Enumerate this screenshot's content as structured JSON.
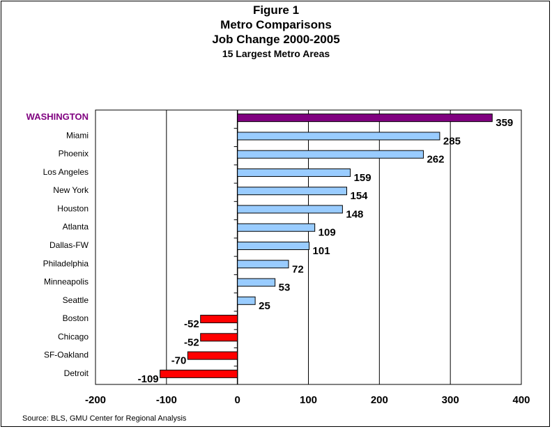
{
  "title": "Figure 1",
  "subtitle_1": "Metro Comparisons",
  "subtitle_2": "Job  Change 2000-2005",
  "subtitle_3": "15 Largest Metro Areas",
  "source": "Source: BLS, GMU Center for Regional Analysis",
  "colors": {
    "highlight": "#800080",
    "positive": "#99ccff",
    "negative": "#ff0000",
    "outline": "#000000"
  },
  "chart_data": {
    "type": "bar",
    "orientation": "horizontal",
    "categories": [
      "WASHINGTON",
      "Miami",
      "Phoenix",
      "Los Angeles",
      "New York",
      "Houston",
      "Atlanta",
      "Dallas-FW",
      "Philadelphia",
      "Minneapolis",
      "Seattle",
      "Boston",
      "Chicago",
      "SF-Oakland",
      "Detroit"
    ],
    "values": [
      359,
      285,
      262,
      159,
      154,
      148,
      109,
      101,
      72,
      53,
      25,
      -52,
      -52,
      -70,
      -109
    ],
    "data_labels": [
      "359",
      "285",
      "262",
      "159",
      "154",
      "148",
      "109",
      "101",
      "72",
      "53",
      "25",
      "-52",
      "-52",
      "-70",
      "-109"
    ],
    "highlight_category": "WASHINGTON",
    "xlim": [
      -200,
      400
    ],
    "xticks": [
      -200,
      -100,
      0,
      100,
      200,
      300,
      400
    ],
    "xtick_labels": [
      "-200",
      "-100",
      "0",
      "100",
      "200",
      "300",
      "400"
    ],
    "grid": "vertical",
    "legend": "none"
  }
}
